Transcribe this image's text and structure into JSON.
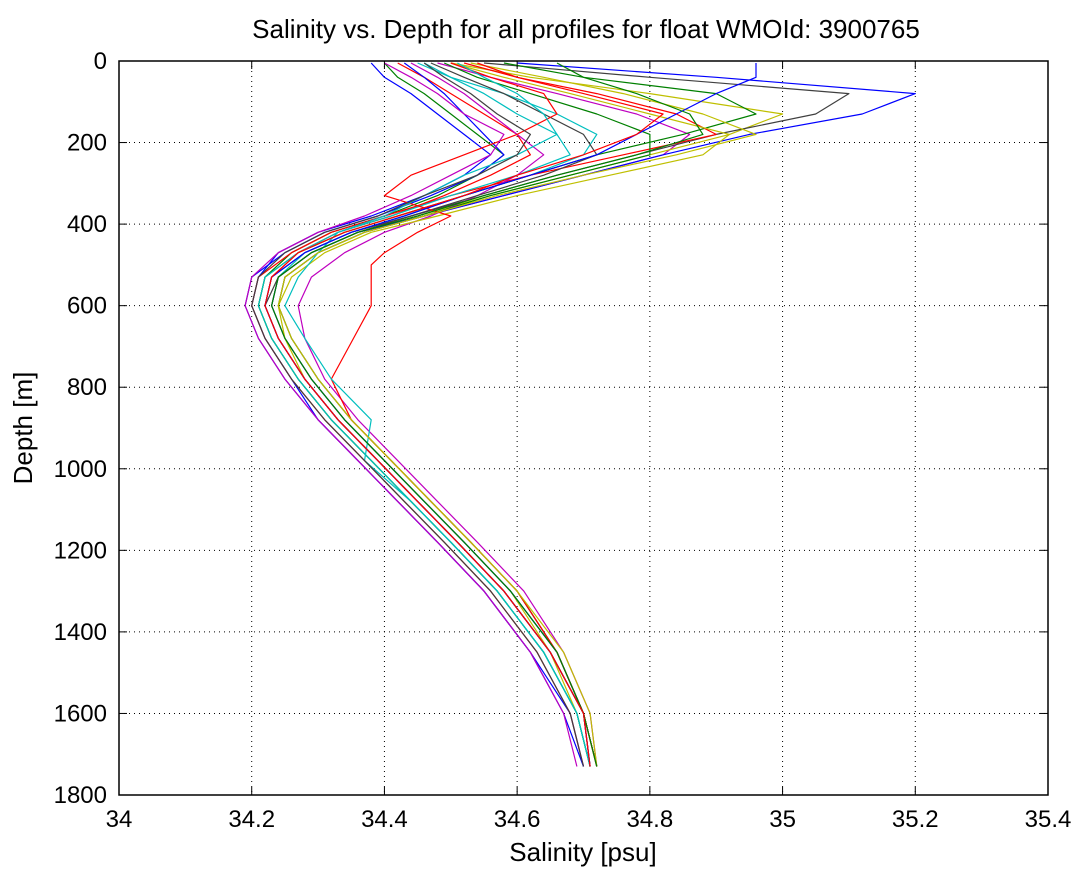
{
  "chart_data": {
    "type": "line",
    "title": "Salinity vs. Depth for all profiles for float WMOId: 3900765",
    "xlabel": "Salinity [psu]",
    "ylabel": "Depth [m]",
    "xlim": [
      34,
      35.4
    ],
    "ylim": [
      0,
      1800
    ],
    "y_reversed": true,
    "grid": true,
    "grid_style": "dotted",
    "x_ticks": [
      "34",
      "34.2",
      "34.4",
      "34.6",
      "34.8",
      "35",
      "35.2",
      "35.4"
    ],
    "y_ticks": [
      "0",
      "200",
      "400",
      "600",
      "800",
      "1000",
      "1200",
      "1400",
      "1600",
      "1800"
    ],
    "series_colors": [
      "#0000ff",
      "#008000",
      "#ff0000",
      "#00bfbf",
      "#bf00bf",
      "#bfbf00",
      "#404040"
    ],
    "series": [
      {
        "x": [
          34.38,
          34.4,
          34.44,
          34.48,
          34.52,
          34.56,
          34.52,
          34.46,
          34.38,
          34.3,
          34.24,
          34.21,
          34.2,
          34.22,
          34.26,
          34.3,
          34.36,
          34.42,
          34.48,
          34.55,
          34.62,
          34.68,
          34.7
        ],
        "y": [
          5,
          40,
          80,
          130,
          180,
          230,
          280,
          330,
          380,
          420,
          470,
          530,
          600,
          680,
          780,
          880,
          980,
          1080,
          1180,
          1300,
          1450,
          1600,
          1730
        ]
      },
      {
        "x": [
          34.4,
          34.42,
          34.46,
          34.5,
          34.54,
          34.58,
          34.54,
          34.48,
          34.4,
          34.32,
          34.26,
          34.22,
          34.21,
          34.23,
          34.27,
          34.32,
          34.38,
          34.44,
          34.5,
          34.57,
          34.64,
          34.69,
          34.71
        ],
        "y": [
          5,
          40,
          80,
          130,
          180,
          230,
          280,
          330,
          380,
          420,
          470,
          530,
          600,
          680,
          780,
          880,
          980,
          1080,
          1180,
          1300,
          1450,
          1600,
          1730
        ]
      },
      {
        "x": [
          34.42,
          34.46,
          34.5,
          34.55,
          34.6,
          34.62,
          34.56,
          34.49,
          34.41,
          34.33,
          34.27,
          34.23,
          34.22,
          34.24,
          34.28,
          34.33,
          34.39,
          34.45,
          34.51,
          34.58,
          34.65,
          34.7,
          34.71
        ],
        "y": [
          5,
          40,
          80,
          130,
          180,
          230,
          280,
          330,
          380,
          420,
          470,
          530,
          600,
          680,
          780,
          880,
          980,
          1080,
          1180,
          1300,
          1450,
          1600,
          1730
        ]
      },
      {
        "x": [
          34.45,
          34.5,
          34.58,
          34.66,
          34.72,
          34.7,
          34.62,
          34.52,
          34.43,
          34.35,
          34.28,
          34.24,
          34.23,
          34.25,
          34.29,
          34.34,
          34.4,
          34.46,
          34.52,
          34.59,
          34.66,
          34.7,
          34.72
        ],
        "y": [
          5,
          40,
          80,
          130,
          180,
          230,
          280,
          330,
          380,
          420,
          470,
          530,
          600,
          680,
          780,
          880,
          980,
          1080,
          1180,
          1300,
          1450,
          1600,
          1730
        ]
      },
      {
        "x": [
          34.48,
          34.56,
          34.66,
          34.78,
          34.86,
          34.82,
          34.7,
          34.58,
          34.46,
          34.37,
          34.3,
          34.25,
          34.24,
          34.26,
          34.3,
          34.35,
          34.41,
          34.47,
          34.53,
          34.6,
          34.66,
          34.7,
          34.72
        ],
        "y": [
          5,
          40,
          80,
          130,
          180,
          230,
          280,
          330,
          380,
          420,
          470,
          530,
          600,
          680,
          780,
          880,
          980,
          1080,
          1180,
          1300,
          1450,
          1600,
          1730
        ]
      },
      {
        "x": [
          34.5,
          34.62,
          34.8,
          35.0,
          34.92,
          34.8,
          34.68,
          34.56,
          34.45,
          34.36,
          34.29,
          34.24,
          34.23,
          34.25,
          34.29,
          34.34,
          34.4,
          34.46,
          34.52,
          34.59,
          34.65,
          34.69,
          34.71
        ],
        "y": [
          5,
          40,
          80,
          130,
          180,
          230,
          280,
          330,
          380,
          420,
          470,
          530,
          600,
          680,
          780,
          880,
          980,
          1080,
          1180,
          1300,
          1450,
          1600,
          1730
        ]
      },
      {
        "x": [
          34.55,
          34.8,
          35.1,
          35.05,
          34.9,
          34.78,
          34.66,
          34.55,
          34.44,
          34.35,
          34.28,
          34.23,
          34.22,
          34.24,
          34.28,
          34.33,
          34.39,
          34.45,
          34.51,
          34.58,
          34.65,
          34.7,
          34.72
        ],
        "y": [
          5,
          40,
          80,
          130,
          180,
          230,
          280,
          330,
          380,
          420,
          470,
          530,
          600,
          680,
          780,
          880,
          980,
          1080,
          1180,
          1300,
          1450,
          1600,
          1730
        ]
      },
      {
        "x": [
          34.6,
          34.9,
          35.2,
          35.12,
          34.95,
          34.82,
          34.7,
          34.58,
          34.46,
          34.36,
          34.29,
          34.24,
          34.23,
          34.25,
          34.29,
          34.34,
          34.4,
          34.46,
          34.52,
          34.59,
          34.66,
          34.7,
          34.72
        ],
        "y": [
          5,
          40,
          80,
          130,
          180,
          230,
          280,
          330,
          380,
          420,
          470,
          530,
          600,
          680,
          780,
          880,
          980,
          1080,
          1180,
          1300,
          1450,
          1600,
          1730
        ]
      },
      {
        "x": [
          34.58,
          34.7,
          34.9,
          34.96,
          34.85,
          34.72,
          34.62,
          34.52,
          34.42,
          34.34,
          34.27,
          34.22,
          34.21,
          34.23,
          34.27,
          34.32,
          34.38,
          34.44,
          34.5,
          34.57,
          34.64,
          34.69,
          34.71
        ],
        "y": [
          5,
          40,
          80,
          130,
          180,
          230,
          280,
          330,
          380,
          420,
          470,
          530,
          600,
          680,
          780,
          880,
          980,
          1080,
          1180,
          1300,
          1450,
          1600,
          1730
        ]
      },
      {
        "x": [
          34.52,
          34.6,
          34.72,
          34.84,
          34.9,
          34.76,
          34.62,
          34.5,
          34.4,
          34.32,
          34.26,
          34.21,
          34.2,
          34.22,
          34.26,
          34.31,
          34.37,
          34.43,
          34.49,
          34.56,
          34.63,
          34.68,
          34.7
        ],
        "y": [
          5,
          40,
          80,
          130,
          180,
          230,
          280,
          330,
          380,
          420,
          470,
          530,
          600,
          680,
          780,
          880,
          980,
          1080,
          1180,
          1300,
          1450,
          1600,
          1730
        ]
      },
      {
        "x": [
          34.46,
          34.5,
          34.55,
          34.6,
          34.66,
          34.68,
          34.6,
          34.5,
          34.41,
          34.33,
          34.27,
          34.22,
          34.21,
          34.23,
          34.27,
          34.32,
          34.38,
          34.44,
          34.5,
          34.57,
          34.64,
          34.69,
          34.71
        ],
        "y": [
          5,
          40,
          80,
          130,
          180,
          230,
          280,
          330,
          380,
          420,
          470,
          530,
          600,
          680,
          780,
          880,
          980,
          1080,
          1180,
          1300,
          1450,
          1600,
          1730
        ]
      },
      {
        "x": [
          34.44,
          34.48,
          34.52,
          34.56,
          34.6,
          34.64,
          34.6,
          34.54,
          34.47,
          34.4,
          34.34,
          34.29,
          34.27,
          34.28,
          34.31,
          34.36,
          34.42,
          34.48,
          34.54,
          34.61,
          34.67,
          34.71,
          34.72
        ],
        "y": [
          5,
          40,
          80,
          130,
          180,
          230,
          280,
          330,
          380,
          420,
          470,
          530,
          600,
          680,
          780,
          880,
          980,
          1080,
          1180,
          1300,
          1450,
          1600,
          1730
        ]
      },
      {
        "x": [
          34.5,
          34.58,
          34.68,
          34.8,
          34.92,
          34.88,
          34.74,
          34.6,
          34.48,
          34.38,
          34.31,
          34.26,
          34.24,
          34.25,
          34.28,
          34.33,
          34.39,
          34.45,
          34.51,
          34.58,
          34.65,
          34.7,
          34.72
        ],
        "y": [
          5,
          40,
          80,
          130,
          180,
          230,
          280,
          330,
          380,
          420,
          470,
          530,
          600,
          680,
          780,
          880,
          980,
          1080,
          1180,
          1300,
          1450,
          1600,
          1730
        ]
      },
      {
        "x": [
          34.47,
          34.52,
          34.58,
          34.64,
          34.7,
          34.72,
          34.64,
          34.54,
          34.44,
          34.36,
          34.29,
          34.24,
          34.22,
          34.24,
          34.28,
          34.33,
          34.39,
          34.45,
          34.51,
          34.58,
          34.65,
          34.7,
          34.71
        ],
        "y": [
          5,
          40,
          80,
          130,
          180,
          230,
          280,
          330,
          380,
          420,
          470,
          530,
          600,
          680,
          780,
          880,
          980,
          1080,
          1180,
          1300,
          1450,
          1600,
          1730
        ]
      },
      {
        "x": [
          34.43,
          34.46,
          34.49,
          34.52,
          34.55,
          34.58,
          34.54,
          34.47,
          34.39,
          34.31,
          34.25,
          34.2,
          34.19,
          34.21,
          34.25,
          34.3,
          34.36,
          34.42,
          34.48,
          34.55,
          34.62,
          34.67,
          34.7
        ],
        "y": [
          5,
          40,
          80,
          130,
          180,
          230,
          280,
          330,
          380,
          420,
          470,
          530,
          600,
          680,
          780,
          880,
          980,
          1080,
          1180,
          1300,
          1450,
          1600,
          1730
        ]
      },
      {
        "x": [
          34.49,
          34.54,
          34.62,
          34.72,
          34.8,
          34.8,
          34.68,
          34.56,
          34.46,
          34.37,
          34.3,
          34.25,
          34.24,
          34.26,
          34.3,
          34.35,
          34.41,
          34.47,
          34.53,
          34.6,
          34.66,
          34.7,
          34.72
        ],
        "y": [
          5,
          40,
          80,
          130,
          180,
          230,
          280,
          330,
          380,
          420,
          470,
          530,
          600,
          680,
          780,
          880,
          980,
          1080,
          1180,
          1300,
          1450,
          1600,
          1730
        ]
      },
      {
        "x": [
          34.5,
          34.56,
          34.64,
          34.66,
          34.6,
          34.52,
          34.44,
          34.4,
          34.5,
          34.45,
          34.4,
          34.38,
          34.38,
          34.35,
          34.32,
          34.35,
          34.41,
          34.47,
          34.53,
          34.6,
          34.66,
          34.7,
          34.72
        ],
        "y": [
          5,
          40,
          80,
          130,
          180,
          230,
          280,
          330,
          380,
          420,
          470,
          500,
          600,
          690,
          780,
          880,
          980,
          1080,
          1180,
          1300,
          1450,
          1600,
          1730
        ]
      },
      {
        "x": [
          34.51,
          34.55,
          34.6,
          34.64,
          34.66,
          34.6,
          34.52,
          34.46,
          34.4,
          34.33,
          34.3,
          34.27,
          34.25,
          34.28,
          34.32,
          34.38,
          34.37,
          34.44,
          34.5,
          34.57,
          34.64,
          34.69,
          34.71
        ],
        "y": [
          5,
          40,
          80,
          130,
          180,
          230,
          280,
          330,
          380,
          420,
          470,
          530,
          600,
          680,
          780,
          880,
          980,
          1080,
          1180,
          1300,
          1450,
          1600,
          1730
        ]
      },
      {
        "x": [
          34.4,
          34.44,
          34.48,
          34.52,
          34.58,
          34.56,
          34.5,
          34.44,
          34.37,
          34.3,
          34.24,
          34.2,
          34.19,
          34.21,
          34.25,
          34.3,
          34.36,
          34.42,
          34.48,
          34.55,
          34.62,
          34.67,
          34.69
        ],
        "y": [
          5,
          40,
          80,
          130,
          180,
          230,
          280,
          330,
          380,
          420,
          470,
          530,
          600,
          680,
          780,
          880,
          980,
          1080,
          1180,
          1300,
          1450,
          1600,
          1730
        ]
      },
      {
        "x": [
          34.53,
          34.64,
          34.76,
          34.88,
          34.96,
          34.84,
          34.7,
          34.57,
          34.46,
          34.37,
          34.3,
          34.25,
          34.24,
          34.26,
          34.3,
          34.35,
          34.41,
          34.47,
          34.53,
          34.6,
          34.67,
          34.71,
          34.72
        ],
        "y": [
          5,
          40,
          80,
          130,
          180,
          230,
          280,
          330,
          380,
          420,
          470,
          530,
          600,
          680,
          780,
          880,
          980,
          1080,
          1180,
          1300,
          1450,
          1600,
          1730
        ]
      },
      {
        "x": [
          34.46,
          34.49,
          34.53,
          34.57,
          34.62,
          34.6,
          34.54,
          34.46,
          34.39,
          34.31,
          34.25,
          34.21,
          34.2,
          34.22,
          34.26,
          34.31,
          34.37,
          34.43,
          34.49,
          34.56,
          34.63,
          34.68,
          34.7
        ],
        "y": [
          5,
          40,
          80,
          130,
          180,
          230,
          280,
          330,
          380,
          420,
          470,
          530,
          600,
          680,
          780,
          880,
          980,
          1080,
          1180,
          1300,
          1450,
          1600,
          1730
        ]
      },
      {
        "x": [
          34.96,
          34.96,
          34.9,
          34.84,
          34.78,
          34.72,
          34.62,
          34.52,
          34.43,
          34.35,
          34.28,
          34.23,
          34.22,
          34.24,
          34.28,
          34.33,
          34.39,
          34.45,
          34.51,
          34.58,
          34.65,
          34.7,
          34.71
        ],
        "y": [
          5,
          40,
          80,
          130,
          180,
          230,
          280,
          330,
          380,
          420,
          470,
          530,
          600,
          680,
          780,
          880,
          980,
          1080,
          1180,
          1300,
          1450,
          1600,
          1730
        ]
      },
      {
        "x": [
          34.66,
          34.7,
          34.78,
          34.86,
          34.88,
          34.78,
          34.66,
          34.55,
          34.45,
          34.36,
          34.29,
          34.24,
          34.23,
          34.25,
          34.29,
          34.34,
          34.4,
          34.46,
          34.52,
          34.59,
          34.66,
          34.7,
          34.72
        ],
        "y": [
          5,
          40,
          80,
          130,
          180,
          230,
          280,
          330,
          380,
          420,
          470,
          530,
          600,
          680,
          780,
          880,
          980,
          1080,
          1180,
          1300,
          1450,
          1600,
          1730
        ]
      },
      {
        "x": [
          34.54,
          34.6,
          34.7,
          34.82,
          34.78,
          34.7,
          34.6,
          34.52,
          34.42,
          34.34,
          34.27,
          34.23,
          34.22,
          34.24,
          34.28,
          34.33,
          34.39,
          34.45,
          34.51,
          34.58,
          34.65,
          34.7,
          34.71
        ],
        "y": [
          5,
          40,
          80,
          130,
          180,
          230,
          280,
          330,
          380,
          420,
          470,
          530,
          600,
          680,
          780,
          880,
          980,
          1080,
          1180,
          1300,
          1450,
          1600,
          1730
        ]
      }
    ]
  }
}
